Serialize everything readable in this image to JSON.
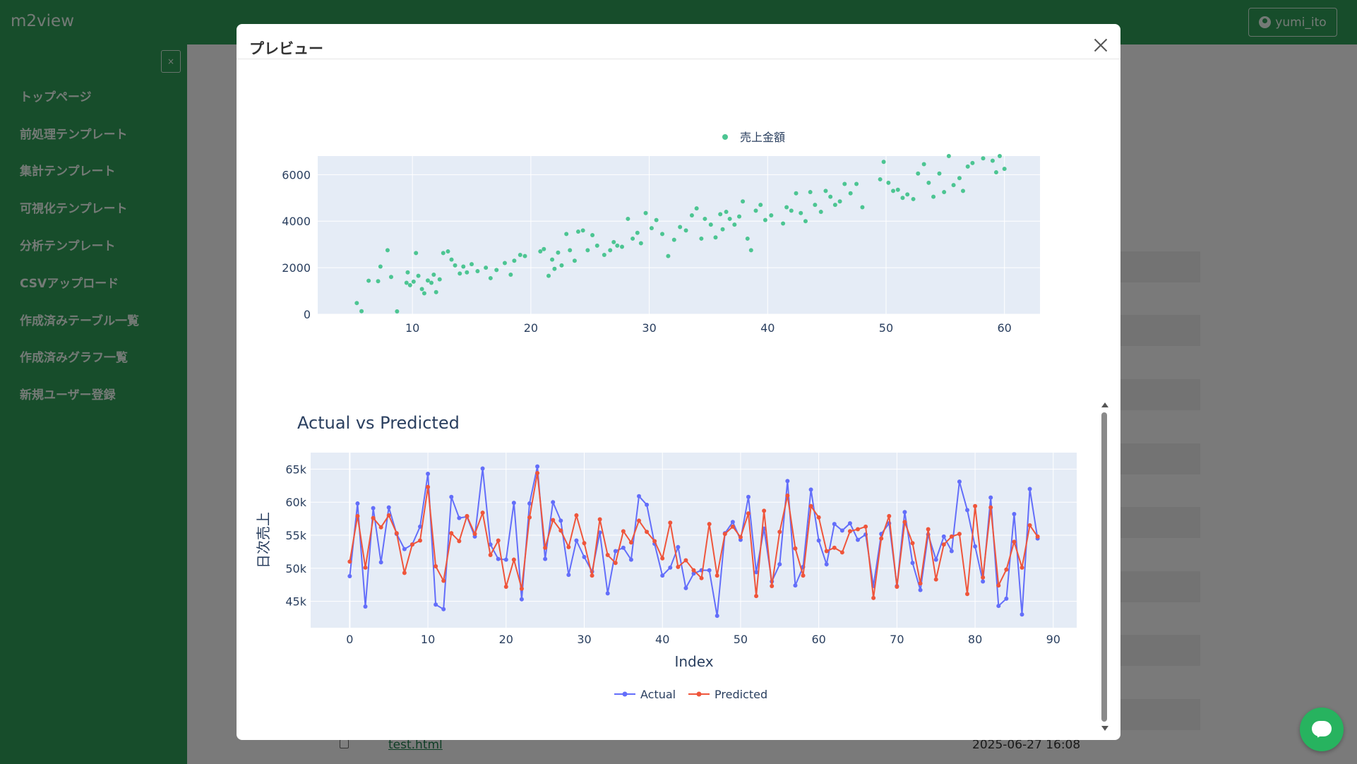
{
  "app": {
    "brand": "m2view",
    "user": "yumi_ito"
  },
  "sidebar": {
    "close_glyph": "×",
    "items": [
      {
        "label": "トップページ"
      },
      {
        "label": "前処理テンプレート"
      },
      {
        "label": "集計テンプレート"
      },
      {
        "label": "可視化テンプレート"
      },
      {
        "label": "分析テンプレート"
      },
      {
        "label": "CSVアップロード"
      },
      {
        "label": "作成済みテーブル一覧"
      },
      {
        "label": "作成済みグラフ一覧"
      },
      {
        "label": "新規ユーザー登録"
      }
    ]
  },
  "background_list": {
    "file_name": "test.html",
    "date": "2025-06-27 16:08"
  },
  "modal": {
    "title": "プレビュー",
    "close_icon": "close-icon"
  },
  "colors": {
    "theme_green": "#2f9a56",
    "scatter": "#4cc592",
    "actual": "#636efa",
    "predicted": "#ef553b",
    "plot_bg": "#e5ecf6"
  },
  "chart_data": [
    {
      "type": "scatter",
      "legend": [
        "売上金額"
      ],
      "legend_position": "top-center",
      "xlim": [
        2,
        63
      ],
      "ylim": [
        0,
        6800
      ],
      "xticks": [
        "10",
        "20",
        "30",
        "40",
        "50",
        "60"
      ],
      "yticks": [
        "0",
        "2000",
        "4000",
        "6000"
      ],
      "series": [
        {
          "name": "売上金額",
          "points": [
            [
              5.3,
              480
            ],
            [
              5.7,
              130
            ],
            [
              6.3,
              1440
            ],
            [
              7.1,
              1420
            ],
            [
              7.3,
              2050
            ],
            [
              7.9,
              2750
            ],
            [
              8.2,
              1600
            ],
            [
              8.7,
              120
            ],
            [
              9.5,
              1350
            ],
            [
              9.6,
              1800
            ],
            [
              9.8,
              1250
            ],
            [
              10.1,
              1400
            ],
            [
              10.3,
              2630
            ],
            [
              10.5,
              1650
            ],
            [
              10.8,
              1080
            ],
            [
              11.0,
              900
            ],
            [
              11.3,
              1450
            ],
            [
              11.6,
              1350
            ],
            [
              11.8,
              1700
            ],
            [
              12.0,
              950
            ],
            [
              12.3,
              1500
            ],
            [
              12.6,
              2630
            ],
            [
              13.0,
              2700
            ],
            [
              13.3,
              2350
            ],
            [
              13.6,
              2100
            ],
            [
              14.0,
              1750
            ],
            [
              14.3,
              2050
            ],
            [
              14.6,
              1800
            ],
            [
              15.0,
              2150
            ],
            [
              15.5,
              1850
            ],
            [
              16.2,
              2000
            ],
            [
              16.6,
              1550
            ],
            [
              17.1,
              1900
            ],
            [
              17.8,
              2200
            ],
            [
              18.3,
              1700
            ],
            [
              18.6,
              2300
            ],
            [
              19.1,
              2550
            ],
            [
              19.5,
              2500
            ],
            [
              20.8,
              2700
            ],
            [
              21.1,
              2800
            ],
            [
              21.5,
              1650
            ],
            [
              21.8,
              2350
            ],
            [
              22.0,
              1950
            ],
            [
              22.3,
              2650
            ],
            [
              22.6,
              2100
            ],
            [
              23.0,
              3450
            ],
            [
              23.3,
              2750
            ],
            [
              23.7,
              2300
            ],
            [
              24.0,
              3550
            ],
            [
              24.4,
              3600
            ],
            [
              24.8,
              2750
            ],
            [
              25.2,
              3400
            ],
            [
              25.6,
              2950
            ],
            [
              26.2,
              2550
            ],
            [
              26.7,
              2750
            ],
            [
              27.0,
              3100
            ],
            [
              27.3,
              2950
            ],
            [
              27.7,
              2900
            ],
            [
              28.2,
              4100
            ],
            [
              28.6,
              3250
            ],
            [
              29.0,
              3500
            ],
            [
              29.3,
              3050
            ],
            [
              29.7,
              4350
            ],
            [
              30.2,
              3700
            ],
            [
              30.6,
              4050
            ],
            [
              31.1,
              3450
            ],
            [
              31.6,
              2500
            ],
            [
              32.1,
              3200
            ],
            [
              32.6,
              3750
            ],
            [
              33.1,
              3600
            ],
            [
              33.6,
              4250
            ],
            [
              34.0,
              4550
            ],
            [
              34.4,
              3250
            ],
            [
              34.7,
              4100
            ],
            [
              35.2,
              3850
            ],
            [
              35.6,
              3300
            ],
            [
              36.0,
              4300
            ],
            [
              36.2,
              3650
            ],
            [
              36.5,
              4400
            ],
            [
              36.8,
              4100
            ],
            [
              37.2,
              3850
            ],
            [
              37.6,
              4200
            ],
            [
              37.9,
              4850
            ],
            [
              38.3,
              3250
            ],
            [
              38.6,
              2750
            ],
            [
              39.0,
              4450
            ],
            [
              39.4,
              4700
            ],
            [
              39.8,
              4050
            ],
            [
              40.3,
              4250
            ],
            [
              41.3,
              3900
            ],
            [
              41.6,
              4600
            ],
            [
              42.0,
              4450
            ],
            [
              42.4,
              5200
            ],
            [
              42.8,
              4350
            ],
            [
              43.2,
              4000
            ],
            [
              43.6,
              5250
            ],
            [
              44.0,
              4700
            ],
            [
              44.5,
              4400
            ],
            [
              44.9,
              5300
            ],
            [
              45.3,
              5050
            ],
            [
              45.7,
              4700
            ],
            [
              46.1,
              4850
            ],
            [
              46.5,
              5600
            ],
            [
              47.0,
              5200
            ],
            [
              47.5,
              5600
            ],
            [
              48.0,
              4600
            ],
            [
              49.5,
              5800
            ],
            [
              49.8,
              6550
            ],
            [
              50.2,
              5650
            ],
            [
              50.6,
              5300
            ],
            [
              51.0,
              5350
            ],
            [
              51.4,
              5000
            ],
            [
              51.8,
              5150
            ],
            [
              52.3,
              4950
            ],
            [
              52.7,
              6050
            ],
            [
              53.2,
              6450
            ],
            [
              53.6,
              5650
            ],
            [
              54.0,
              5050
            ],
            [
              54.5,
              6050
            ],
            [
              54.9,
              5250
            ],
            [
              55.3,
              6800
            ],
            [
              55.7,
              5550
            ],
            [
              56.2,
              5850
            ],
            [
              56.5,
              5300
            ],
            [
              56.9,
              6350
            ],
            [
              57.3,
              6500
            ],
            [
              58.2,
              6700
            ],
            [
              59.0,
              6600
            ],
            [
              59.3,
              6100
            ],
            [
              59.6,
              6800
            ],
            [
              60.0,
              6250
            ]
          ]
        }
      ]
    },
    {
      "type": "line",
      "title": "Actual vs Predicted",
      "xlabel": "Index",
      "ylabel": "日次売上",
      "xlim": [
        -5,
        93
      ],
      "ylim": [
        41000,
        67500
      ],
      "xticks": [
        "0",
        "10",
        "20",
        "30",
        "40",
        "50",
        "60",
        "70",
        "80",
        "90"
      ],
      "yticks": [
        "45k",
        "50k",
        "55k",
        "60k",
        "65k"
      ],
      "legend_position": "bottom-center",
      "series": [
        {
          "name": "Actual",
          "values": [
            48800,
            59800,
            44200,
            59100,
            50900,
            59200,
            55200,
            52900,
            53600,
            56300,
            64300,
            44500,
            43800,
            60800,
            57600,
            57800,
            54800,
            65100,
            53600,
            51400,
            51300,
            59900,
            45300,
            59800,
            65400,
            51400,
            60000,
            57200,
            49000,
            54200,
            51700,
            49500,
            55400,
            46200,
            52600,
            53100,
            51300,
            60900,
            59600,
            53700,
            48900,
            50100,
            53200,
            47000,
            49200,
            49700,
            49700,
            42800,
            55300,
            57000,
            54300,
            60800,
            49400,
            56000,
            48000,
            50600,
            63200,
            47400,
            50200,
            61900,
            54200,
            50600,
            56700,
            55700,
            56800,
            54300,
            55100,
            47300,
            55200,
            56800,
            47300,
            58500,
            50800,
            46700,
            55100,
            51300,
            54800,
            52600,
            63100,
            58800,
            53300,
            48000,
            60700,
            44300,
            45400,
            58200,
            43000,
            62000,
            54500
          ]
        },
        {
          "name": "Predicted",
          "values": [
            51000,
            57900,
            50100,
            57600,
            56200,
            58000,
            55300,
            49300,
            53600,
            54200,
            62300,
            50300,
            48100,
            55300,
            54100,
            57900,
            55200,
            58400,
            52000,
            54200,
            47200,
            51300,
            46900,
            57700,
            64400,
            53100,
            57300,
            55700,
            53200,
            58000,
            53800,
            48900,
            57400,
            52000,
            50800,
            55600,
            53900,
            57200,
            55500,
            54100,
            51500,
            56900,
            50200,
            51200,
            49700,
            48500,
            56700,
            48900,
            55200,
            56300,
            54700,
            58300,
            45800,
            58700,
            47300,
            55500,
            61000,
            53000,
            48900,
            59400,
            57700,
            52600,
            53100,
            52400,
            55600,
            55900,
            56300,
            45500,
            54500,
            57900,
            47200,
            57000,
            53800,
            47700,
            55900,
            48300,
            53600,
            54800,
            55200,
            46100,
            59400,
            48600,
            59200,
            47400,
            49800,
            54000,
            50100,
            56500,
            54800
          ]
        }
      ]
    }
  ]
}
